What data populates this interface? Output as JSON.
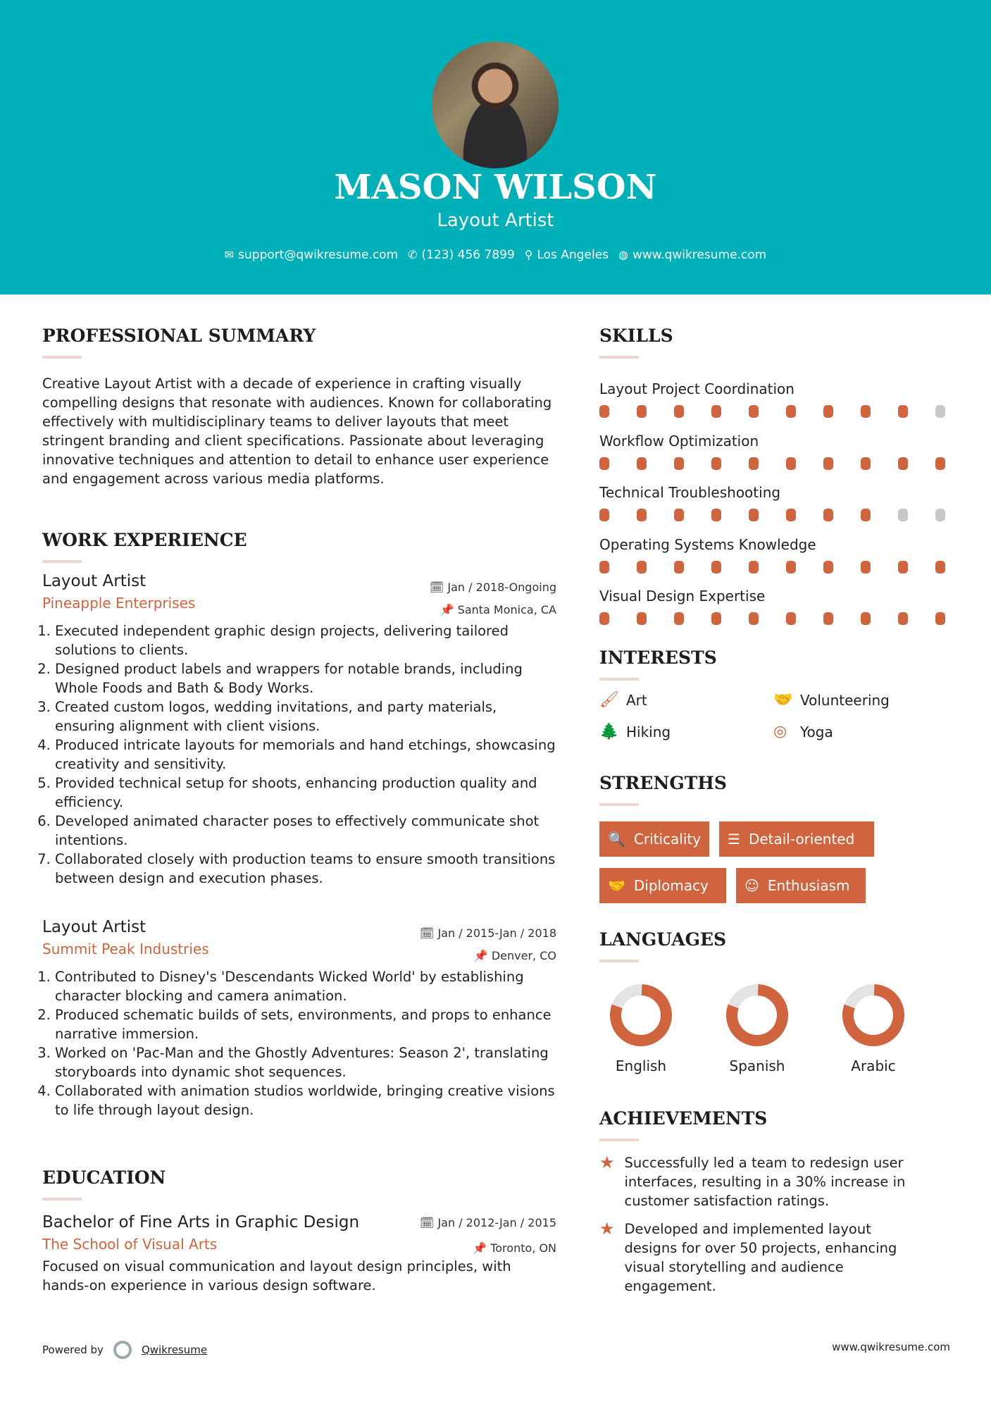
{
  "header": {
    "name": "MASON WILSON",
    "role": "Layout Artist",
    "contacts": [
      {
        "icon": "envelope-icon",
        "glyph": "✉",
        "text": "support@qwikresume.com"
      },
      {
        "icon": "phone-icon",
        "glyph": "✆",
        "text": "(123) 456 7899"
      },
      {
        "icon": "map-pin-icon",
        "glyph": "⚲",
        "text": "Los Angeles"
      },
      {
        "icon": "globe-icon",
        "glyph": "◍",
        "text": "www.qwikresume.com"
      }
    ]
  },
  "summary": {
    "title": "PROFESSIONAL SUMMARY",
    "text": "Creative Layout Artist with a decade of experience in crafting visually compelling designs that resonate with audiences. Known for collaborating effectively with multidisciplinary teams to deliver layouts that meet stringent branding and client specifications. Passionate about leveraging innovative techniques and attention to detail to enhance user experience and engagement across various media platforms."
  },
  "experience": {
    "title": "WORK EXPERIENCE",
    "jobs": [
      {
        "title": "Layout Artist",
        "company": "Pineapple Enterprises",
        "date": "Jan / 2018-Ongoing",
        "location": "Santa Monica, CA",
        "bullets": [
          "Executed independent graphic design projects, delivering tailored solutions to clients.",
          "Designed product labels and wrappers for notable brands, including Whole Foods and Bath & Body Works.",
          "Created custom logos, wedding invitations, and party materials, ensuring alignment with client visions.",
          "Produced intricate layouts for memorials and hand etchings, showcasing creativity and sensitivity.",
          "Provided technical setup for shoots, enhancing production quality and efficiency.",
          "Developed animated character poses to effectively communicate shot intentions.",
          "Collaborated closely with production teams to ensure smooth transitions between design and execution phases."
        ]
      },
      {
        "title": "Layout Artist",
        "company": "Summit Peak Industries",
        "date": "Jan / 2015-Jan / 2018",
        "location": "Denver, CO",
        "bullets": [
          "Contributed to Disney's 'Descendants Wicked World' by establishing character blocking and camera animation.",
          "Produced schematic builds of sets, environments, and props to enhance narrative immersion.",
          "Worked on 'Pac-Man and the Ghostly Adventures: Season 2', translating storyboards into dynamic shot sequences.",
          "Collaborated with animation studios worldwide, bringing creative visions to life through layout design."
        ]
      }
    ]
  },
  "education": {
    "title": "EDUCATION",
    "degree": "Bachelor of Fine Arts in Graphic Design",
    "school": "The School of Visual Arts",
    "date": "Jan / 2012-Jan / 2015",
    "location": "Toronto, ON",
    "text": "Focused on visual communication and layout design principles, with hands-on experience in various design software."
  },
  "skills": {
    "title": "SKILLS",
    "items": [
      {
        "name": "Layout Project Coordination",
        "level": 9,
        "max": 10
      },
      {
        "name": "Workflow Optimization",
        "level": 10,
        "max": 10
      },
      {
        "name": "Technical Troubleshooting",
        "level": 8,
        "max": 10
      },
      {
        "name": "Operating Systems Knowledge",
        "level": 10,
        "max": 10
      },
      {
        "name": "Visual Design Expertise",
        "level": 10,
        "max": 10
      }
    ]
  },
  "interests": {
    "title": "INTERESTS",
    "items": [
      {
        "label": "Art",
        "icon": "paintbrush-icon",
        "glyph": "🖌"
      },
      {
        "label": "Volunteering",
        "icon": "handshake-icon",
        "glyph": "🤝"
      },
      {
        "label": "Hiking",
        "icon": "tree-icon",
        "glyph": "🌲"
      },
      {
        "label": "Yoga",
        "icon": "lifebuoy-icon",
        "glyph": "◎"
      }
    ]
  },
  "strengths": {
    "title": "STRENGTHS",
    "items": [
      {
        "label": "Criticality",
        "icon": "search-icon",
        "glyph": "🔍"
      },
      {
        "label": "Detail-oriented",
        "icon": "list-icon",
        "glyph": "☰"
      },
      {
        "label": "Diplomacy",
        "icon": "handshake-icon",
        "glyph": "🤝"
      },
      {
        "label": "Enthusiasm",
        "icon": "smile-icon",
        "glyph": "☺"
      }
    ]
  },
  "languages": {
    "title": "LANGUAGES",
    "items": [
      {
        "name": "English",
        "level": 0.8
      },
      {
        "name": "Spanish",
        "level": 0.8
      },
      {
        "name": "Arabic",
        "level": 0.8
      }
    ]
  },
  "achievements": {
    "title": "ACHIEVEMENTS",
    "items": [
      "Successfully led a team to redesign user interfaces, resulting in a 30% increase in customer satisfaction ratings.",
      "Developed and implemented layout designs for over 50 projects, enhancing visual storytelling and audience engagement."
    ]
  },
  "footer": {
    "powered_by": "Powered by",
    "brand": "Qwikresume",
    "url": "www.qwikresume.com"
  },
  "colors": {
    "header": "#00b0b9",
    "accent": "#d0643e",
    "inactive": "#c8c8c8"
  }
}
